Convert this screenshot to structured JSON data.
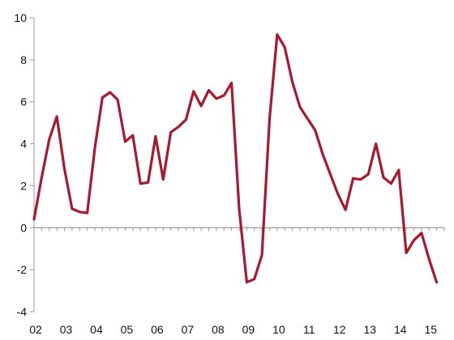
{
  "chart_data": {
    "type": "line",
    "title": "",
    "xlabel": "",
    "ylabel": "",
    "ylim": [
      -4,
      10
    ],
    "yticks": [
      -4,
      -2,
      0,
      2,
      4,
      6,
      8,
      10
    ],
    "xlim": [
      2002.0,
      2015.5
    ],
    "xtick_labels": [
      "02",
      "03",
      "04",
      "05",
      "06",
      "07",
      "08",
      "09",
      "10",
      "11",
      "12",
      "13",
      "14",
      "15"
    ],
    "grid": false,
    "legend": "none",
    "colors": {
      "line": "#a8182e",
      "axis": "#999999",
      "text": "#111111"
    },
    "series": [
      {
        "x": [
          2002.0,
          2002.25,
          2002.5,
          2002.75,
          2003.0,
          2003.25,
          2003.5,
          2003.75,
          2004.0,
          2004.25,
          2004.5,
          2004.75,
          2005.0,
          2005.25,
          2005.5,
          2005.75,
          2006.0,
          2006.25,
          2006.5,
          2006.75,
          2007.0,
          2007.25,
          2007.5,
          2007.75,
          2008.0,
          2008.25,
          2008.5,
          2008.75,
          2009.0,
          2009.25,
          2009.5,
          2009.75,
          2010.0,
          2010.25,
          2010.5,
          2010.75,
          2011.0,
          2011.25,
          2011.5,
          2011.75,
          2012.0,
          2012.25,
          2012.5,
          2012.75,
          2013.0,
          2013.25,
          2013.5,
          2013.75,
          2014.0,
          2014.25,
          2014.5,
          2014.75,
          2015.0,
          2015.25
        ],
        "y": [
          0.4,
          2.4,
          4.2,
          5.3,
          2.8,
          0.9,
          0.75,
          0.7,
          3.8,
          6.2,
          6.45,
          6.1,
          4.1,
          4.4,
          2.1,
          2.15,
          4.35,
          2.3,
          4.55,
          4.8,
          5.15,
          6.5,
          5.8,
          6.55,
          6.15,
          6.3,
          6.9,
          0.9,
          -2.6,
          -2.45,
          -1.3,
          5.2,
          9.2,
          8.6,
          6.95,
          5.75,
          5.2,
          4.65,
          3.5,
          2.55,
          1.6,
          0.85,
          2.35,
          2.3,
          2.55,
          4.0,
          2.4,
          2.1,
          2.75,
          -1.2,
          -0.6,
          -0.25,
          -1.5,
          -2.6
        ]
      }
    ]
  }
}
